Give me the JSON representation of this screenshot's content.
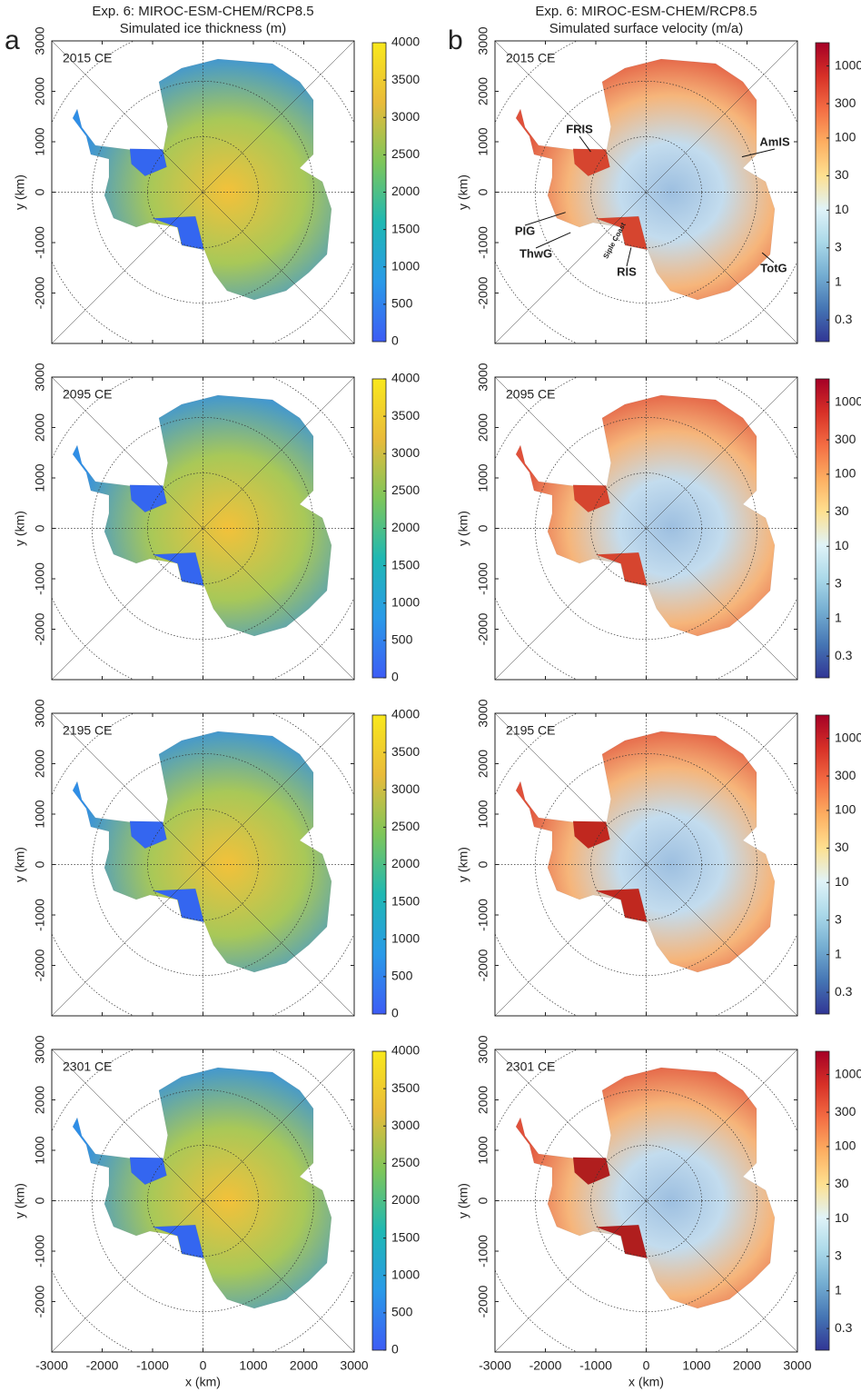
{
  "figure": {
    "columns": [
      {
        "letter": "a",
        "title": "Exp. 6: MIROC-ESM-CHEM/RCP8.5",
        "subtitle": "Simulated ice thickness (m)"
      },
      {
        "letter": "b",
        "title": "Exp. 6: MIROC-ESM-CHEM/RCP8.5",
        "subtitle": "Simulated surface velocity (m/a)"
      }
    ]
  },
  "chart_data": [
    {
      "type": "map",
      "title": "2015 CE",
      "ylabel": "y (km)",
      "xlim": [
        -3000,
        3000
      ],
      "ylim": [
        -3000,
        3000
      ],
      "xticks": [
        -3000,
        -2000,
        -1000,
        0,
        1000,
        2000,
        3000
      ],
      "yticks": [
        -2000,
        -1000,
        0,
        1000,
        2000,
        3000
      ],
      "map_colors": [
        "#f3c13a",
        "#a8c858",
        "#2f8ee6"
      ],
      "shelf_color": "#3466f0",
      "colorbar": {
        "scale": "linear",
        "lim": [
          0,
          4000
        ],
        "ticks": [
          0,
          500,
          1000,
          1500,
          2000,
          2500,
          3000,
          3500,
          4000
        ],
        "colors": [
          "#3d5cf5",
          "#2a9ae8",
          "#1fb8b3",
          "#7dc65a",
          "#e9bb3a",
          "#f9e81c"
        ]
      }
    },
    {
      "type": "map",
      "title": "2095 CE",
      "ylabel": "y (km)",
      "xlim": [
        -3000,
        3000
      ],
      "ylim": [
        -3000,
        3000
      ],
      "xticks": [
        -3000,
        -2000,
        -1000,
        0,
        1000,
        2000,
        3000
      ],
      "yticks": [
        -2000,
        -1000,
        0,
        1000,
        2000,
        3000
      ],
      "map_colors": [
        "#f3c13a",
        "#a8c858",
        "#2f8ee6"
      ],
      "shelf_color": "#3466f0",
      "colorbar": {
        "scale": "linear",
        "lim": [
          0,
          4000
        ],
        "ticks": [
          0,
          500,
          1000,
          1500,
          2000,
          2500,
          3000,
          3500,
          4000
        ],
        "colors": [
          "#3d5cf5",
          "#2a9ae8",
          "#1fb8b3",
          "#7dc65a",
          "#e9bb3a",
          "#f9e81c"
        ]
      }
    },
    {
      "type": "map",
      "title": "2195 CE",
      "ylabel": "y (km)",
      "xlim": [
        -3000,
        3000
      ],
      "ylim": [
        -3000,
        3000
      ],
      "xticks": [
        -3000,
        -2000,
        -1000,
        0,
        1000,
        2000,
        3000
      ],
      "yticks": [
        -2000,
        -1000,
        0,
        1000,
        2000,
        3000
      ],
      "map_colors": [
        "#f3c13a",
        "#a8c858",
        "#2f8ee6"
      ],
      "shelf_color": "#3466f0",
      "colorbar": {
        "scale": "linear",
        "lim": [
          0,
          4000
        ],
        "ticks": [
          0,
          500,
          1000,
          1500,
          2000,
          2500,
          3000,
          3500,
          4000
        ],
        "colors": [
          "#3d5cf5",
          "#2a9ae8",
          "#1fb8b3",
          "#7dc65a",
          "#e9bb3a",
          "#f9e81c"
        ]
      }
    },
    {
      "type": "map",
      "title": "2301 CE",
      "ylabel": "y (km)",
      "xlabel": "x (km)",
      "xlim": [
        -3000,
        3000
      ],
      "ylim": [
        -3000,
        3000
      ],
      "xticks": [
        -3000,
        -2000,
        -1000,
        0,
        1000,
        2000,
        3000
      ],
      "yticks": [
        -2000,
        -1000,
        0,
        1000,
        2000,
        3000
      ],
      "map_colors": [
        "#f3c13a",
        "#a8c858",
        "#2f8ee6"
      ],
      "shelf_color": "#3466f0",
      "colorbar": {
        "scale": "linear",
        "lim": [
          0,
          4000
        ],
        "ticks": [
          0,
          500,
          1000,
          1500,
          2000,
          2500,
          3000,
          3500,
          4000
        ],
        "colors": [
          "#3d5cf5",
          "#2a9ae8",
          "#1fb8b3",
          "#7dc65a",
          "#e9bb3a",
          "#f9e81c"
        ]
      }
    },
    {
      "type": "map",
      "title": "2015 CE",
      "ylabel": "y (km)",
      "xlim": [
        -3000,
        3000
      ],
      "ylim": [
        -3000,
        3000
      ],
      "xticks": [
        -3000,
        -2000,
        -1000,
        0,
        1000,
        2000,
        3000
      ],
      "yticks": [
        -2000,
        -1000,
        0,
        1000,
        2000,
        3000
      ],
      "map_colors": [
        "#9dbfe0",
        "#c3dcee",
        "#f6b57a",
        "#e0503a"
      ],
      "shelf_color": "#d6452f",
      "colorbar": {
        "scale": "log",
        "lim": [
          0.15,
          2100
        ],
        "ticks": [
          0.3,
          1,
          3,
          10,
          30,
          100,
          300,
          1000
        ],
        "colors": [
          "#313695",
          "#4575b4",
          "#74add1",
          "#abd9e9",
          "#e0f3f8",
          "#fee090",
          "#fdae61",
          "#f46d43",
          "#d73027",
          "#a50026"
        ]
      },
      "annotations": [
        "FRIS",
        "AmIS",
        "PIG",
        "ThwG",
        "RIS",
        "TotG",
        "Siple Coast"
      ]
    },
    {
      "type": "map",
      "title": "2095 CE",
      "ylabel": "y (km)",
      "xlim": [
        -3000,
        3000
      ],
      "ylim": [
        -3000,
        3000
      ],
      "xticks": [
        -3000,
        -2000,
        -1000,
        0,
        1000,
        2000,
        3000
      ],
      "yticks": [
        -2000,
        -1000,
        0,
        1000,
        2000,
        3000
      ],
      "map_colors": [
        "#9dbfe0",
        "#c3dcee",
        "#f6b57a",
        "#e0503a"
      ],
      "shelf_color": "#d6452f",
      "colorbar": {
        "scale": "log",
        "lim": [
          0.15,
          2100
        ],
        "ticks": [
          0.3,
          1,
          3,
          10,
          30,
          100,
          300,
          1000
        ],
        "colors": [
          "#313695",
          "#4575b4",
          "#74add1",
          "#abd9e9",
          "#e0f3f8",
          "#fee090",
          "#fdae61",
          "#f46d43",
          "#d73027",
          "#a50026"
        ]
      }
    },
    {
      "type": "map",
      "title": "2195 CE",
      "ylabel": "y (km)",
      "xlim": [
        -3000,
        3000
      ],
      "ylim": [
        -3000,
        3000
      ],
      "xticks": [
        -3000,
        -2000,
        -1000,
        0,
        1000,
        2000,
        3000
      ],
      "yticks": [
        -2000,
        -1000,
        0,
        1000,
        2000,
        3000
      ],
      "map_colors": [
        "#9dbfe0",
        "#c3dcee",
        "#f6b57a",
        "#e0503a"
      ],
      "shelf_color": "#c0281f",
      "colorbar": {
        "scale": "log",
        "lim": [
          0.15,
          2100
        ],
        "ticks": [
          0.3,
          1,
          3,
          10,
          30,
          100,
          300,
          1000
        ],
        "colors": [
          "#313695",
          "#4575b4",
          "#74add1",
          "#abd9e9",
          "#e0f3f8",
          "#fee090",
          "#fdae61",
          "#f46d43",
          "#d73027",
          "#a50026"
        ]
      }
    },
    {
      "type": "map",
      "title": "2301 CE",
      "ylabel": "y (km)",
      "xlabel": "x (km)",
      "xlim": [
        -3000,
        3000
      ],
      "ylim": [
        -3000,
        3000
      ],
      "xticks": [
        -3000,
        -2000,
        -1000,
        0,
        1000,
        2000,
        3000
      ],
      "yticks": [
        -2000,
        -1000,
        0,
        1000,
        2000,
        3000
      ],
      "map_colors": [
        "#9dbfe0",
        "#c3dcee",
        "#f6b57a",
        "#e0503a"
      ],
      "shelf_color": "#b01e1e",
      "colorbar": {
        "scale": "log",
        "lim": [
          0.15,
          2100
        ],
        "ticks": [
          0.3,
          1,
          3,
          10,
          30,
          100,
          300,
          1000
        ],
        "colors": [
          "#313695",
          "#4575b4",
          "#74add1",
          "#abd9e9",
          "#e0f3f8",
          "#fee090",
          "#fdae61",
          "#f46d43",
          "#d73027",
          "#a50026"
        ]
      }
    }
  ]
}
